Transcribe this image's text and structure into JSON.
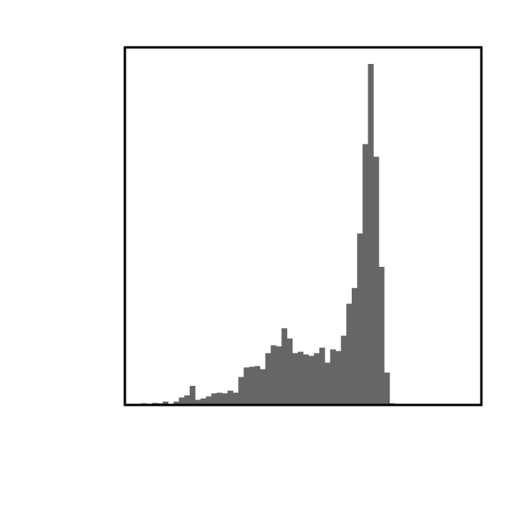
{
  "chart_data": {
    "type": "bar",
    "title": "",
    "xlabel": "",
    "ylabel": "",
    "xlim": [
      0,
      66
    ],
    "ylim": [
      0,
      100
    ],
    "grid": false,
    "legend": "none",
    "bar_color": "#666666",
    "frame_color": "#000000",
    "bins": [
      3,
      4,
      5,
      6,
      7,
      8,
      9,
      10,
      11,
      12,
      13,
      14,
      15,
      16,
      17,
      18,
      19,
      20,
      21,
      22,
      23,
      24,
      25,
      26,
      27,
      28,
      29,
      30,
      31,
      32,
      33,
      34,
      35,
      36,
      37,
      38,
      39,
      40,
      41,
      42,
      43,
      44,
      45,
      46,
      47,
      48,
      49,
      50
    ],
    "values": [
      0.5,
      0.2,
      0.6,
      0.5,
      1.0,
      0.2,
      1.0,
      2.2,
      2.8,
      5.6,
      1.5,
      1.9,
      2.5,
      3.4,
      3.6,
      3.4,
      4.2,
      3.6,
      8.2,
      11.0,
      11.2,
      11.4,
      10.5,
      15.2,
      17.5,
      17.2,
      22.5,
      19.5,
      15.2,
      15.6,
      14.8,
      14.4,
      15.2,
      16.8,
      12.4,
      16.3,
      15.8,
      20.3,
      29.7,
      34.3,
      50.3,
      76.5,
      100.0,
      72.8,
      40.5,
      9.5,
      0.5,
      0.2
    ]
  }
}
